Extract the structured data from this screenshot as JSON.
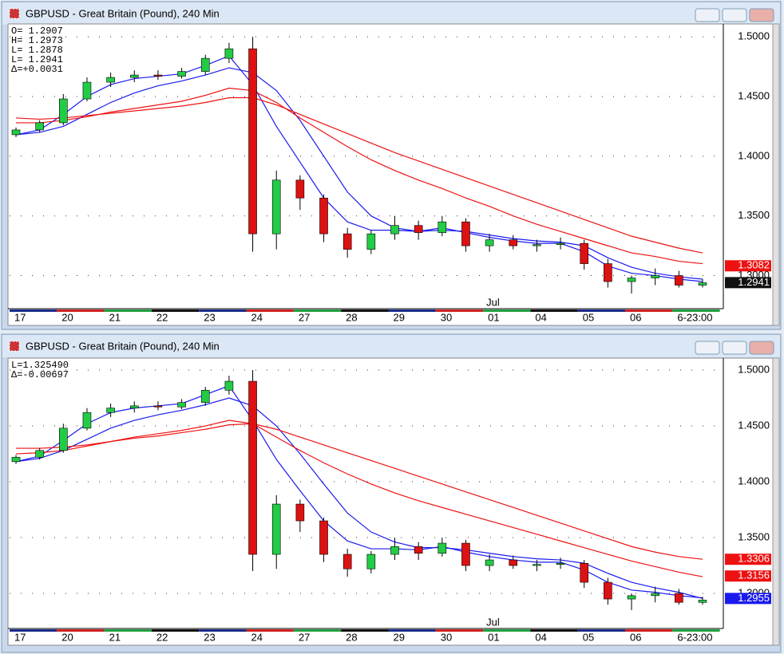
{
  "chart_data": [
    {
      "type": "candlestick",
      "title": "GBPUSD - Great Britain (Pound), 240 Min",
      "info_lines": [
        "O= 1.2907",
        "H= 1.2973",
        "L= 1.2878",
        "L= 1.2941",
        "Δ=+0.0031"
      ],
      "categories": [
        "17",
        null,
        "20",
        null,
        "21",
        null,
        "22",
        null,
        "23",
        null,
        "24",
        null,
        "27",
        null,
        "28",
        null,
        "29",
        null,
        "30",
        null,
        "01",
        null,
        "04",
        null,
        "05",
        null,
        "06",
        null,
        "6-23:00",
        null
      ],
      "x_annotation": "Jul",
      "open": [
        1.418,
        1.422,
        1.428,
        1.448,
        1.462,
        1.466,
        1.468,
        1.467,
        1.471,
        1.482,
        1.49,
        1.335,
        1.38,
        1.365,
        1.335,
        1.322,
        1.335,
        1.342,
        1.336,
        1.345,
        1.325,
        1.33,
        1.325,
        1.326,
        1.327,
        1.31,
        1.295,
        1.298,
        1.3,
        1.292
      ],
      "high": [
        1.424,
        1.43,
        1.452,
        1.466,
        1.47,
        1.472,
        1.472,
        1.474,
        1.485,
        1.495,
        1.5,
        1.388,
        1.384,
        1.368,
        1.34,
        1.338,
        1.35,
        1.346,
        1.35,
        1.348,
        1.335,
        1.334,
        1.33,
        1.332,
        1.33,
        1.314,
        1.3,
        1.306,
        1.304,
        1.297
      ],
      "low": [
        1.416,
        1.42,
        1.426,
        1.446,
        1.458,
        1.462,
        1.464,
        1.465,
        1.468,
        1.478,
        1.32,
        1.322,
        1.355,
        1.328,
        1.315,
        1.318,
        1.33,
        1.33,
        1.333,
        1.32,
        1.32,
        1.322,
        1.32,
        1.322,
        1.305,
        1.29,
        1.285,
        1.292,
        1.29,
        1.29
      ],
      "close": [
        1.422,
        1.428,
        1.448,
        1.462,
        1.466,
        1.468,
        1.467,
        1.471,
        1.482,
        1.49,
        1.335,
        1.38,
        1.365,
        1.335,
        1.322,
        1.335,
        1.342,
        1.336,
        1.345,
        1.325,
        1.33,
        1.325,
        1.326,
        1.327,
        1.31,
        1.295,
        1.298,
        1.3,
        1.292,
        1.294
      ],
      "up_color": "#22cc44",
      "down_color": "#dd1111",
      "series": [
        {
          "color": "#1a1aee",
          "values": [
            1.418,
            1.422,
            1.435,
            1.45,
            1.46,
            1.465,
            1.467,
            1.469,
            1.476,
            1.484,
            1.46,
            1.425,
            1.395,
            1.365,
            1.345,
            1.338,
            1.338,
            1.337,
            1.34,
            1.336,
            1.332,
            1.329,
            1.327,
            1.327,
            1.32,
            1.308,
            1.302,
            1.3,
            1.297,
            1.295
          ]
        },
        {
          "color": "#1a1aee",
          "values": [
            1.418,
            1.42,
            1.425,
            1.435,
            1.445,
            1.453,
            1.459,
            1.463,
            1.468,
            1.474,
            1.47,
            1.455,
            1.43,
            1.4,
            1.37,
            1.35,
            1.34,
            1.337,
            1.338,
            1.337,
            1.334,
            1.331,
            1.329,
            1.328,
            1.325,
            1.315,
            1.307,
            1.302,
            1.299,
            1.297
          ]
        },
        {
          "color": "#ee1111",
          "values": [
            1.428,
            1.428,
            1.43,
            1.433,
            1.437,
            1.44,
            1.443,
            1.446,
            1.451,
            1.457,
            1.455,
            1.445,
            1.432,
            1.42,
            1.408,
            1.397,
            1.388,
            1.38,
            1.373,
            1.365,
            1.358,
            1.35,
            1.343,
            1.337,
            1.331,
            1.325,
            1.319,
            1.316,
            1.312,
            1.31
          ]
        },
        {
          "color": "#ee1111",
          "values": [
            1.432,
            1.431,
            1.432,
            1.434,
            1.436,
            1.438,
            1.44,
            1.442,
            1.445,
            1.449,
            1.449,
            1.443,
            1.435,
            1.427,
            1.419,
            1.411,
            1.403,
            1.396,
            1.389,
            1.382,
            1.375,
            1.368,
            1.361,
            1.354,
            1.347,
            1.34,
            1.333,
            1.328,
            1.323,
            1.319
          ]
        }
      ],
      "ylim": [
        1.2723,
        1.5088
      ],
      "yticks": [
        {
          "value": 1.5,
          "label": "1.5000"
        },
        {
          "value": 1.45,
          "label": "1.4500"
        },
        {
          "value": 1.4,
          "label": "1.4000"
        },
        {
          "value": 1.35,
          "label": "1.3500"
        },
        {
          "value": 1.3,
          "label": "1.3000"
        }
      ],
      "price_tags": [
        {
          "value": 1.3082,
          "color": "#ee1111"
        },
        {
          "value": 1.2941,
          "color": "#111111"
        }
      ],
      "grid": true
    },
    {
      "type": "candlestick",
      "title": "GBPUSD - Great Britain (Pound), 240 Min",
      "info_lines": [
        "L=1.325490",
        "Δ=-0.00697"
      ],
      "categories": [
        "17",
        null,
        "20",
        null,
        "21",
        null,
        "22",
        null,
        "23",
        null,
        "24",
        null,
        "27",
        null,
        "28",
        null,
        "29",
        null,
        "30",
        null,
        "01",
        null,
        "04",
        null,
        "05",
        null,
        "06",
        null,
        "6-23:00",
        null
      ],
      "x_annotation": "Jul",
      "open": [
        1.418,
        1.422,
        1.428,
        1.448,
        1.462,
        1.466,
        1.468,
        1.467,
        1.471,
        1.482,
        1.49,
        1.335,
        1.38,
        1.365,
        1.335,
        1.322,
        1.335,
        1.342,
        1.336,
        1.345,
        1.325,
        1.33,
        1.325,
        1.326,
        1.327,
        1.31,
        1.295,
        1.298,
        1.3,
        1.292
      ],
      "high": [
        1.424,
        1.43,
        1.452,
        1.466,
        1.47,
        1.472,
        1.472,
        1.474,
        1.485,
        1.495,
        1.5,
        1.388,
        1.384,
        1.368,
        1.34,
        1.338,
        1.35,
        1.346,
        1.35,
        1.348,
        1.335,
        1.334,
        1.33,
        1.332,
        1.33,
        1.314,
        1.3,
        1.306,
        1.304,
        1.297
      ],
      "low": [
        1.416,
        1.42,
        1.426,
        1.446,
        1.458,
        1.462,
        1.464,
        1.465,
        1.468,
        1.478,
        1.32,
        1.322,
        1.355,
        1.328,
        1.315,
        1.318,
        1.33,
        1.33,
        1.333,
        1.32,
        1.32,
        1.322,
        1.32,
        1.322,
        1.305,
        1.29,
        1.285,
        1.292,
        1.29,
        1.29
      ],
      "close": [
        1.422,
        1.428,
        1.448,
        1.462,
        1.466,
        1.468,
        1.467,
        1.471,
        1.482,
        1.49,
        1.335,
        1.38,
        1.365,
        1.335,
        1.322,
        1.335,
        1.342,
        1.336,
        1.345,
        1.325,
        1.33,
        1.325,
        1.326,
        1.327,
        1.31,
        1.295,
        1.298,
        1.3,
        1.292,
        1.294
      ],
      "up_color": "#22cc44",
      "down_color": "#dd1111",
      "series": [
        {
          "color": "#1a1aee",
          "values": [
            1.418,
            1.423,
            1.437,
            1.452,
            1.462,
            1.466,
            1.468,
            1.47,
            1.478,
            1.486,
            1.455,
            1.42,
            1.392,
            1.365,
            1.347,
            1.34,
            1.34,
            1.339,
            1.342,
            1.337,
            1.333,
            1.33,
            1.328,
            1.328,
            1.321,
            1.31,
            1.303,
            1.301,
            1.298,
            1.296
          ]
        },
        {
          "color": "#1a1aee",
          "values": [
            1.418,
            1.421,
            1.428,
            1.438,
            1.448,
            1.455,
            1.46,
            1.464,
            1.469,
            1.475,
            1.468,
            1.45,
            1.425,
            1.398,
            1.372,
            1.355,
            1.346,
            1.341,
            1.341,
            1.339,
            1.336,
            1.333,
            1.331,
            1.33,
            1.327,
            1.318,
            1.31,
            1.305,
            1.301,
            1.2955
          ]
        },
        {
          "color": "#ee1111",
          "values": [
            1.425,
            1.426,
            1.428,
            1.432,
            1.436,
            1.44,
            1.443,
            1.446,
            1.45,
            1.455,
            1.452,
            1.44,
            1.428,
            1.417,
            1.407,
            1.398,
            1.39,
            1.383,
            1.377,
            1.371,
            1.365,
            1.359,
            1.353,
            1.347,
            1.341,
            1.335,
            1.329,
            1.324,
            1.319,
            1.315
          ]
        },
        {
          "color": "#ee1111",
          "values": [
            1.43,
            1.43,
            1.431,
            1.433,
            1.436,
            1.439,
            1.441,
            1.444,
            1.447,
            1.451,
            1.452,
            1.447,
            1.44,
            1.433,
            1.426,
            1.419,
            1.412,
            1.405,
            1.398,
            1.391,
            1.384,
            1.377,
            1.37,
            1.363,
            1.356,
            1.349,
            1.342,
            1.337,
            1.333,
            1.3306
          ]
        }
      ],
      "ylim": [
        1.2686,
        1.5086
      ],
      "yticks": [
        {
          "value": 1.5,
          "label": "1.5000"
        },
        {
          "value": 1.45,
          "label": "1.4500"
        },
        {
          "value": 1.4,
          "label": "1.4000"
        },
        {
          "value": 1.35,
          "label": "1.3500"
        },
        {
          "value": 1.3,
          "label": "1.3000"
        }
      ],
      "price_tags": [
        {
          "value": 1.3306,
          "color": "#ee1111"
        },
        {
          "value": 1.3156,
          "color": "#ee1111"
        },
        {
          "value": 1.2955,
          "color": "#1a1aee"
        }
      ],
      "grid": true
    }
  ]
}
